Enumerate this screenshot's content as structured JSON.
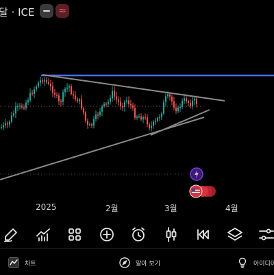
{
  "app": {
    "symbol_title": "달 · ICE",
    "approx_symbol": "≈"
  },
  "time_axis": {
    "ticks": [
      "2025",
      "2월",
      "3월",
      "4월"
    ]
  },
  "toolbar": {
    "tools": [
      "draw-tool-icon",
      "indicators-icon",
      "layouts-icon",
      "add-icon",
      "alert-icon",
      "candle-type-icon",
      "replay-icon",
      "layers-icon",
      "settings-sliders-icon"
    ]
  },
  "bottom_nav": {
    "chart_label": "차트",
    "explore_label": "알아 보기",
    "ideas_label": "아이디어"
  },
  "colors": {
    "up": "#26a69a",
    "down": "#ef5350",
    "resistance_line": "#4a6cf7",
    "trend_line": "#8a8a8a",
    "alert_badge": "#7c3aed",
    "flag_badge": "#d8323e"
  }
}
